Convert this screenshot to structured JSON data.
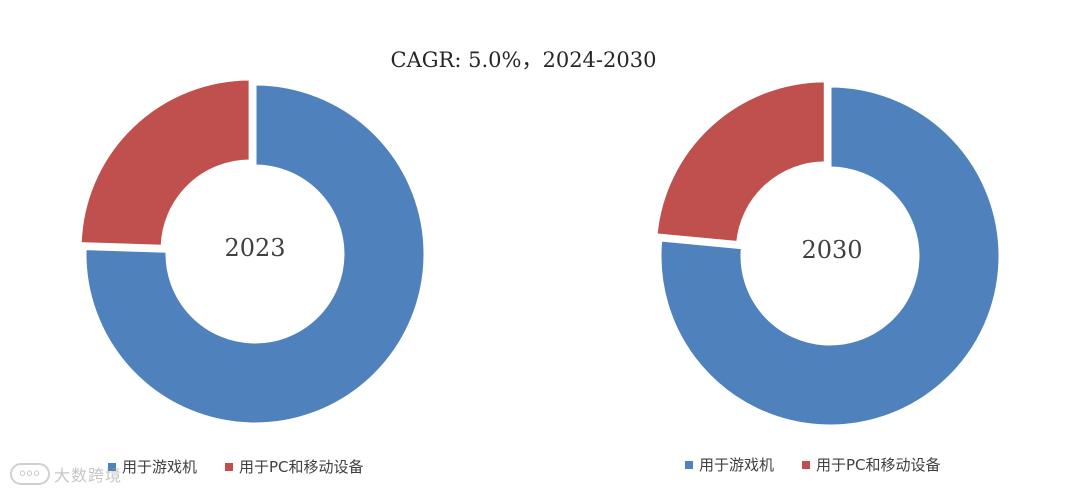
{
  "title": "CAGR:   5.0%，2024-2030",
  "colors": {
    "gaming": "#4F81BD",
    "pc_mobile": "#C0504D"
  },
  "chart_data": [
    {
      "type": "pie",
      "center_label": "2023",
      "categories": [
        "用于游戏机",
        "用于PC和移动设备"
      ],
      "values": [
        75.5,
        24.5
      ],
      "legend": [
        "用于游戏机",
        "用于PC和移动设备"
      ]
    },
    {
      "type": "pie",
      "center_label": "2030",
      "categories": [
        "用于游戏机",
        "用于PC和移动设备"
      ],
      "values": [
        76.5,
        23.5
      ],
      "legend": [
        "用于游戏机",
        "用于PC和移动设备"
      ]
    }
  ],
  "watermark": {
    "text": "大数跨境"
  }
}
